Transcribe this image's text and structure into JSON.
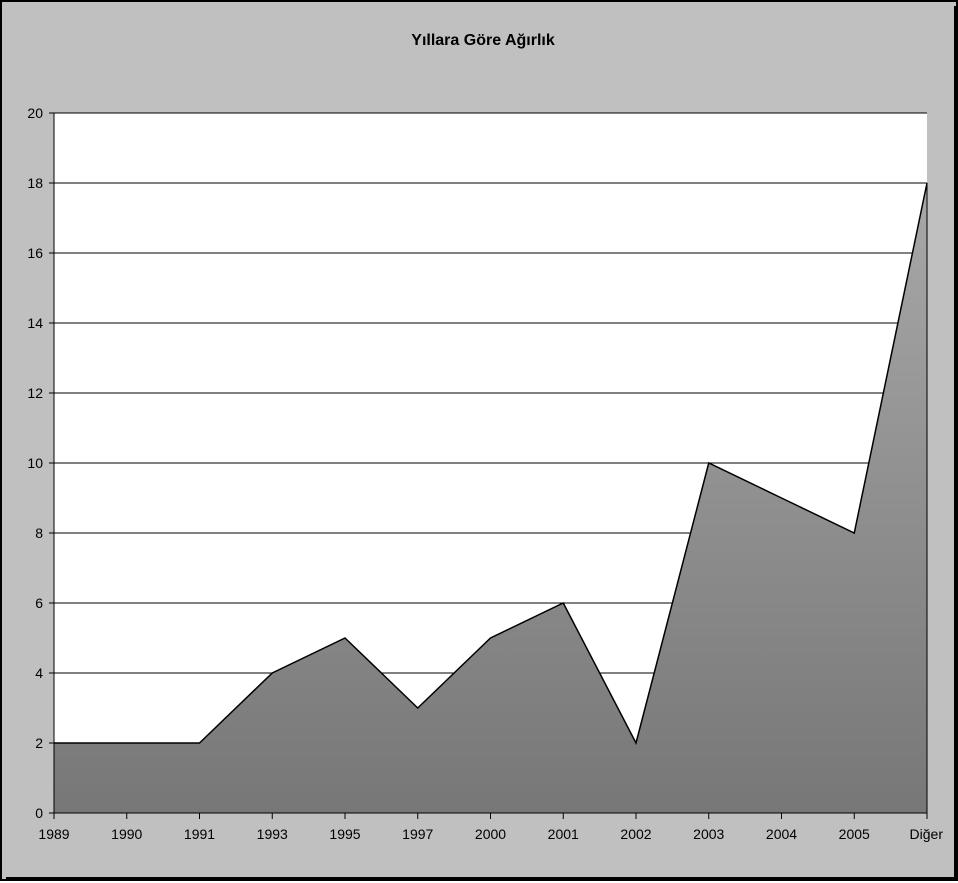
{
  "chart_data": {
    "type": "area",
    "title": "Yıllara Göre Ağırlık",
    "xlabel": "",
    "ylabel": "",
    "categories": [
      "1989",
      "1990",
      "1991",
      "1993",
      "1995",
      "1997",
      "2000",
      "2001",
      "2002",
      "2003",
      "2004",
      "2005",
      "Diğer"
    ],
    "series": [
      {
        "values": [
          2,
          2,
          2,
          4,
          5,
          3,
          5,
          6,
          2,
          10,
          9,
          8,
          18
        ]
      }
    ],
    "ylim": [
      0,
      20
    ],
    "yticks": [
      0,
      2,
      4,
      6,
      8,
      10,
      12,
      14,
      16,
      18,
      20
    ],
    "grid": "horizontal",
    "legend": "none",
    "colors": {
      "background": "#c0c0c0",
      "plot_area": "#ffffff",
      "area_top": "#a8a8a8",
      "area_bottom": "#777777",
      "line": "#000000",
      "gridline": "#000000"
    }
  }
}
